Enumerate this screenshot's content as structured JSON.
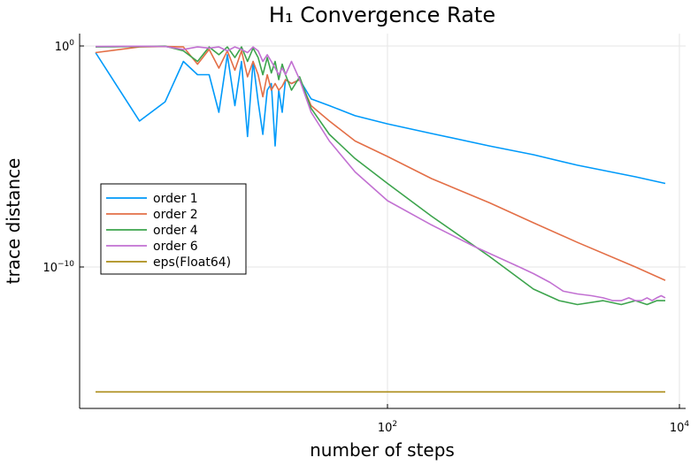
{
  "chart_data": {
    "type": "line",
    "title": "H₁ Convergence Rate",
    "xlabel": "number of steps",
    "ylabel": "trace distance",
    "xscale": "log10",
    "yscale": "log10",
    "xlim": [
      1,
      10000
    ],
    "ylim": [
      1e-16,
      1
    ],
    "x_ticks": [
      {
        "value": 100,
        "base": "10",
        "exp": "2"
      },
      {
        "value": 10000,
        "base": "10",
        "exp": "4"
      }
    ],
    "y_ticks": [
      {
        "value": 1,
        "base": "10",
        "exp": "0"
      },
      {
        "value": 1e-10,
        "base": "10",
        "exp": "−10"
      }
    ],
    "grid": true,
    "legend_position": "middle-left",
    "series": [
      {
        "name": "order 1",
        "color": "#009AFA",
        "x": [
          1,
          2,
          3,
          4,
          5,
          6,
          7,
          8,
          9,
          10,
          11,
          12,
          13,
          14,
          15,
          16,
          17,
          18,
          19,
          20,
          22,
          25,
          30,
          40,
          60,
          100,
          200,
          500,
          1000,
          2000,
          5000,
          8000
        ],
        "y": [
          0.5,
          0.0004,
          0.003,
          0.2,
          0.05,
          0.05,
          0.001,
          0.4,
          0.002,
          0.2,
          8e-05,
          0.2,
          0.003,
          0.0001,
          0.01,
          0.02,
          3e-05,
          0.01,
          0.001,
          0.03,
          0.02,
          0.03,
          0.004,
          0.002,
          0.0007,
          0.0003,
          0.00011,
          3e-05,
          1.2e-05,
          4e-06,
          1.2e-06,
          6e-07
        ]
      },
      {
        "name": "order 2",
        "color": "#E36F47",
        "x": [
          1,
          2,
          3,
          4,
          5,
          6,
          7,
          8,
          9,
          10,
          11,
          12,
          13,
          14,
          15,
          16,
          17,
          18,
          19,
          20,
          22,
          25,
          30,
          40,
          60,
          100,
          200,
          500,
          1000,
          2000,
          5000,
          8000
        ],
        "y": [
          0.5,
          0.9,
          0.95,
          0.9,
          0.15,
          0.7,
          0.1,
          0.6,
          0.08,
          0.6,
          0.04,
          0.2,
          0.05,
          0.005,
          0.05,
          0.01,
          0.02,
          0.01,
          0.015,
          0.03,
          0.02,
          0.03,
          0.002,
          0.0004,
          5e-05,
          1e-05,
          1e-06,
          8e-08,
          1e-08,
          1.3e-09,
          1e-10,
          2.5e-11
        ]
      },
      {
        "name": "order 4",
        "color": "#3DA44D",
        "x": [
          1,
          2,
          3,
          4,
          5,
          6,
          7,
          8,
          9,
          10,
          11,
          12,
          13,
          14,
          15,
          16,
          17,
          18,
          19,
          20,
          22,
          25,
          30,
          40,
          60,
          100,
          200,
          500,
          1000,
          1500,
          2000,
          3000,
          4000,
          5000,
          6000,
          7000,
          8000
        ],
        "y": [
          0.9,
          0.95,
          0.98,
          0.6,
          0.2,
          0.9,
          0.4,
          0.9,
          0.3,
          0.9,
          0.2,
          0.8,
          0.3,
          0.05,
          0.3,
          0.06,
          0.2,
          0.03,
          0.15,
          0.05,
          0.01,
          0.04,
          0.0015,
          0.0001,
          8e-06,
          6e-07,
          2e-08,
          3e-10,
          1e-11,
          3e-12,
          2e-12,
          3e-12,
          2e-12,
          3e-12,
          2e-12,
          3e-12,
          3e-12
        ]
      },
      {
        "name": "order 6",
        "color": "#C271D2",
        "x": [
          1,
          2,
          3,
          4,
          5,
          6,
          7,
          8,
          9,
          10,
          11,
          12,
          13,
          14,
          15,
          16,
          17,
          18,
          19,
          20,
          22,
          25,
          30,
          40,
          60,
          100,
          200,
          400,
          800,
          1000,
          1300,
          1600,
          2000,
          2500,
          3000,
          3500,
          4000,
          4500,
          5000,
          5500,
          6000,
          6500,
          7000,
          7500,
          8000
        ],
        "y": [
          0.95,
          0.97,
          0.95,
          0.7,
          0.9,
          0.8,
          0.9,
          0.6,
          0.9,
          0.7,
          0.5,
          0.9,
          0.6,
          0.2,
          0.4,
          0.2,
          0.1,
          0.05,
          0.1,
          0.05,
          0.2,
          0.03,
          0.001,
          5e-05,
          2e-06,
          1e-07,
          8e-09,
          8e-10,
          1e-10,
          5e-11,
          2e-11,
          8e-12,
          6e-12,
          5e-12,
          4e-12,
          3e-12,
          3e-12,
          4e-12,
          3e-12,
          3e-12,
          4e-12,
          3e-12,
          4e-12,
          5e-12,
          4e-12
        ]
      },
      {
        "name": "eps(Float64)",
        "color": "#AC8D18",
        "x": [
          1,
          8000
        ],
        "y": [
          2.22e-16,
          2.22e-16
        ]
      }
    ]
  }
}
